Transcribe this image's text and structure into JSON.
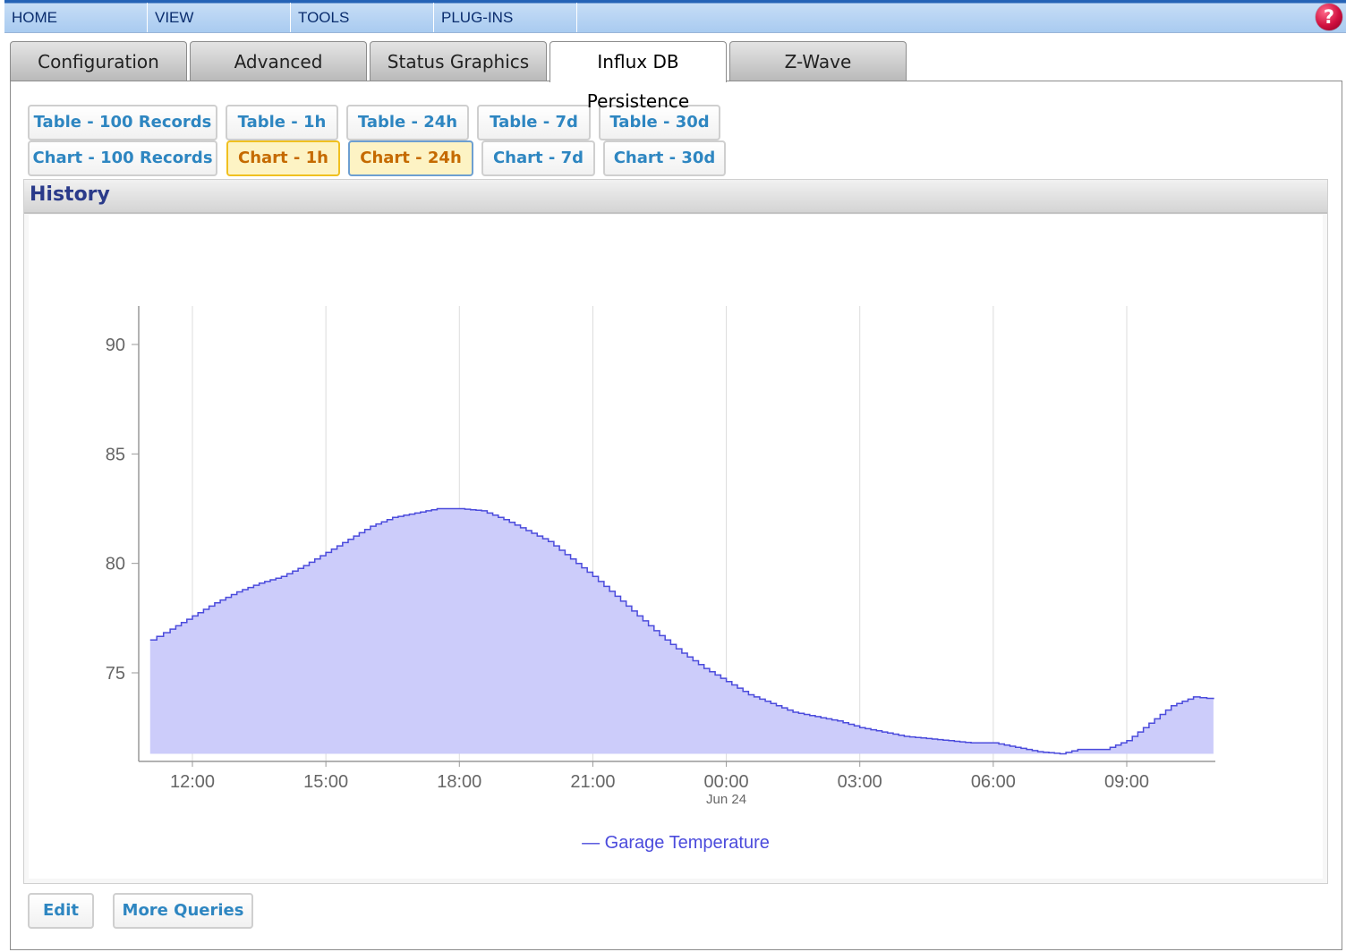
{
  "nav": {
    "items": [
      "HOME",
      "VIEW",
      "TOOLS",
      "PLUG-INS"
    ],
    "help": "?"
  },
  "tabs": [
    "Configuration",
    "Advanced",
    "Status Graphics",
    "Influx DB Persistence",
    "Z-Wave"
  ],
  "active_tab": "Influx DB Persistence",
  "queries": {
    "table": [
      "Table - 100 Records",
      "Table - 1h",
      "Table - 24h",
      "Table - 7d",
      "Table - 30d"
    ],
    "chart": [
      "Chart - 100 Records",
      "Chart - 1h",
      "Chart - 24h",
      "Chart - 7d",
      "Chart - 30d"
    ],
    "highlighted": [
      "Chart - 1h",
      "Chart - 24h"
    ]
  },
  "history": {
    "title": "History"
  },
  "footer": {
    "edit": "Edit",
    "more": "More Queries"
  },
  "colors": {
    "series_line": "#4b4bdc",
    "series_fill": "#ccccfa",
    "accent_text": "#2e86c1",
    "nav_text": "#0a2d6e"
  },
  "chart_data": {
    "type": "area",
    "x_ticks": [
      "12:00",
      "15:00",
      "18:00",
      "21:00",
      "00:00",
      "03:00",
      "06:00",
      "09:00"
    ],
    "x_sublabel": "Jun 24",
    "y_ticks": [
      75,
      80,
      85,
      90
    ],
    "ylim": [
      71.8,
      91.8
    ],
    "grid": "vertical",
    "legend": "bottom-center",
    "series": [
      {
        "name": "Garage Temperature",
        "x_hours": [
          11.05,
          11.5,
          12.0,
          12.5,
          13.0,
          13.5,
          14.0,
          14.5,
          15.0,
          15.5,
          16.0,
          16.5,
          17.0,
          17.5,
          18.0,
          18.5,
          19.0,
          19.5,
          20.0,
          20.5,
          21.0,
          21.5,
          22.0,
          22.5,
          23.0,
          23.5,
          24.0,
          24.5,
          25.0,
          25.5,
          26.0,
          26.5,
          27.0,
          27.5,
          28.0,
          28.5,
          29.0,
          29.5,
          30.0,
          30.5,
          31.0,
          31.5,
          31.9,
          32.5,
          33.0,
          33.5,
          34.0,
          34.5,
          34.95
        ],
        "values": [
          76.5,
          77.0,
          77.6,
          78.2,
          78.7,
          79.1,
          79.4,
          79.9,
          80.5,
          81.1,
          81.7,
          82.1,
          82.3,
          82.5,
          82.5,
          82.4,
          82.0,
          81.5,
          81.0,
          80.2,
          79.4,
          78.5,
          77.6,
          76.7,
          75.9,
          75.2,
          74.6,
          74.0,
          73.6,
          73.2,
          73.0,
          72.8,
          72.5,
          72.3,
          72.1,
          72.0,
          71.9,
          71.8,
          71.8,
          71.6,
          71.4,
          71.3,
          71.5,
          71.5,
          71.9,
          72.7,
          73.5,
          73.9,
          73.8
        ]
      }
    ]
  }
}
